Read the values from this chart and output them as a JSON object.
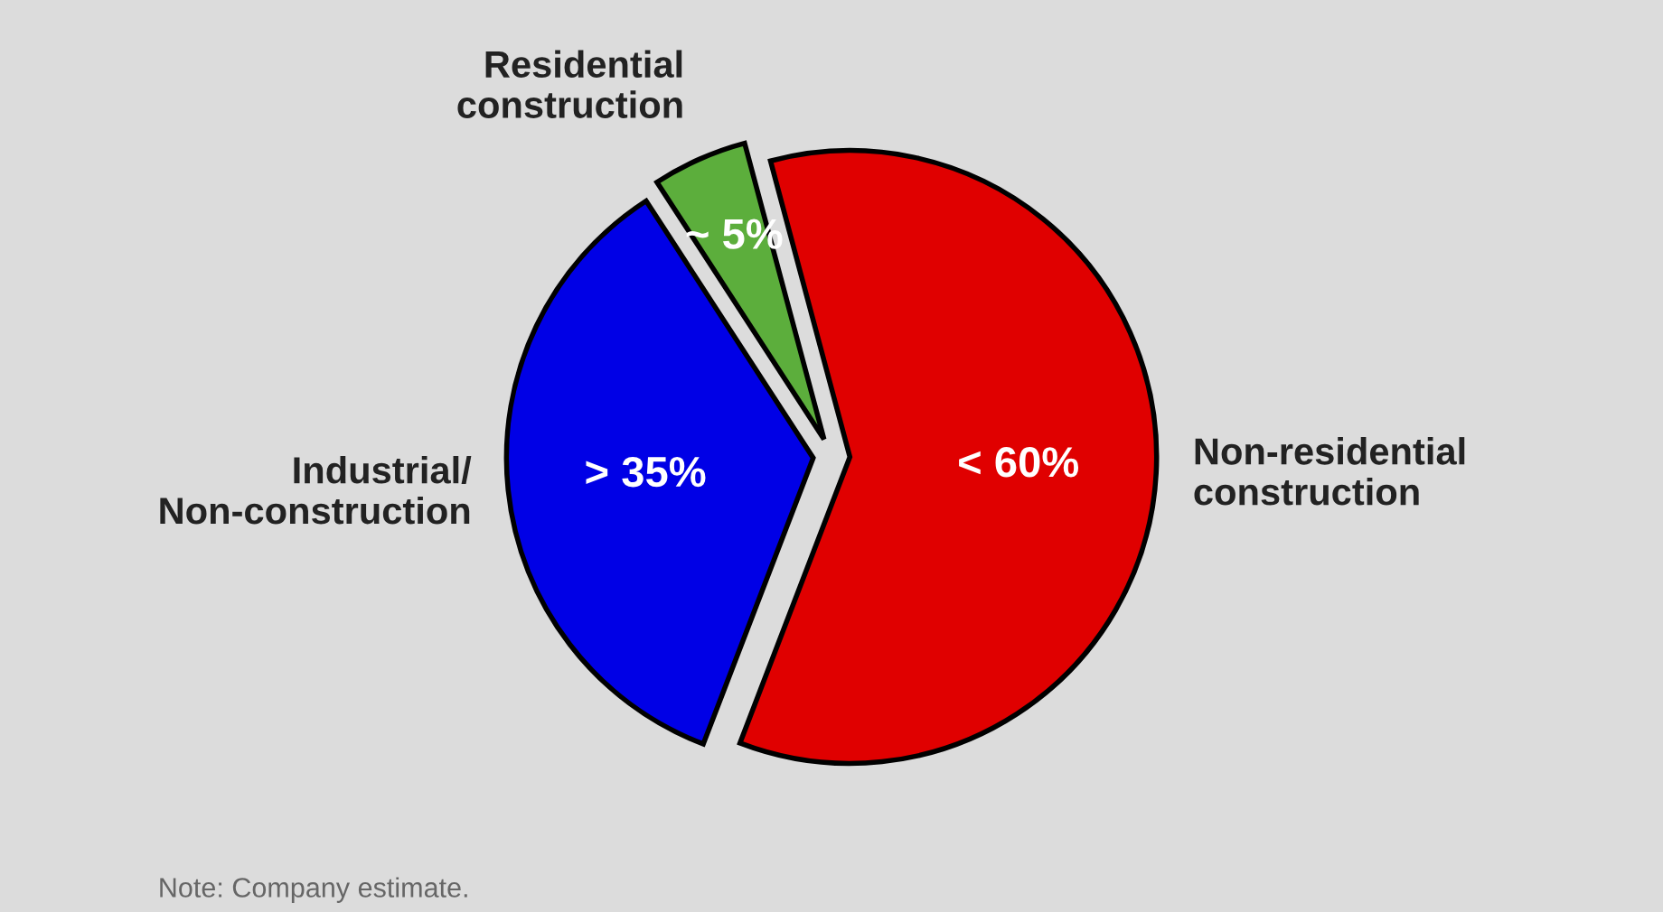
{
  "chart_data": {
    "type": "pie",
    "categories": [
      "Non-residential\nconstruction",
      "Industrial/\nNon-construction",
      "Residential\nconstruction"
    ],
    "values": [
      60,
      35,
      5
    ],
    "value_labels": [
      "< 60%",
      "> 35%",
      "~ 5%"
    ],
    "colors": [
      "#e00000",
      "#0000e6",
      "#5cae3c"
    ],
    "annotations": [
      "Note: Company estimate."
    ]
  }
}
